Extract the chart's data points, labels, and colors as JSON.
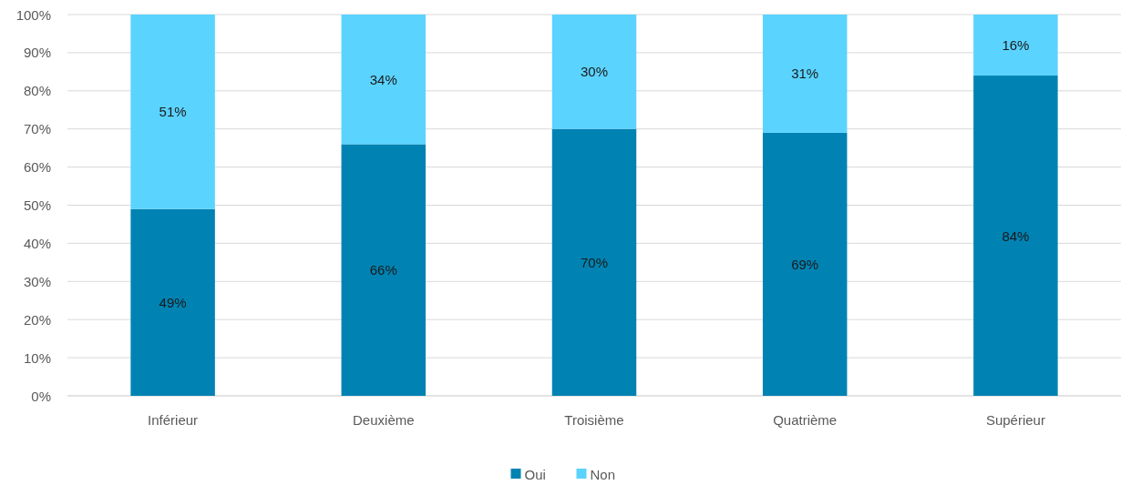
{
  "chart_data": {
    "type": "bar",
    "stacked": true,
    "categories": [
      "Inférieur",
      "Deuxième",
      "Troisième",
      "Quatrième",
      "Supérieur"
    ],
    "series": [
      {
        "name": "Oui",
        "color": "#0083b3",
        "values": [
          49,
          66,
          70,
          69,
          84
        ],
        "value_labels": [
          "49%",
          "66%",
          "70%",
          "69%",
          "84%"
        ]
      },
      {
        "name": "Non",
        "color": "#5bd3ff",
        "values": [
          51,
          34,
          30,
          31,
          16
        ],
        "value_labels": [
          "51%",
          "34%",
          "30%",
          "31%",
          "16%"
        ]
      }
    ],
    "ylim": [
      0,
      100
    ],
    "yticks": [
      {
        "value": 0,
        "label": "0%"
      },
      {
        "value": 10,
        "label": "10%"
      },
      {
        "value": 20,
        "label": "20%"
      },
      {
        "value": 30,
        "label": "30%"
      },
      {
        "value": 40,
        "label": "40%"
      },
      {
        "value": 50,
        "label": "50%"
      },
      {
        "value": 60,
        "label": "60%"
      },
      {
        "value": 70,
        "label": "70%"
      },
      {
        "value": 80,
        "label": "80%"
      },
      {
        "value": 90,
        "label": "90%"
      },
      {
        "value": 100,
        "label": "100%"
      }
    ],
    "grid": "y",
    "legend": "bottom"
  }
}
